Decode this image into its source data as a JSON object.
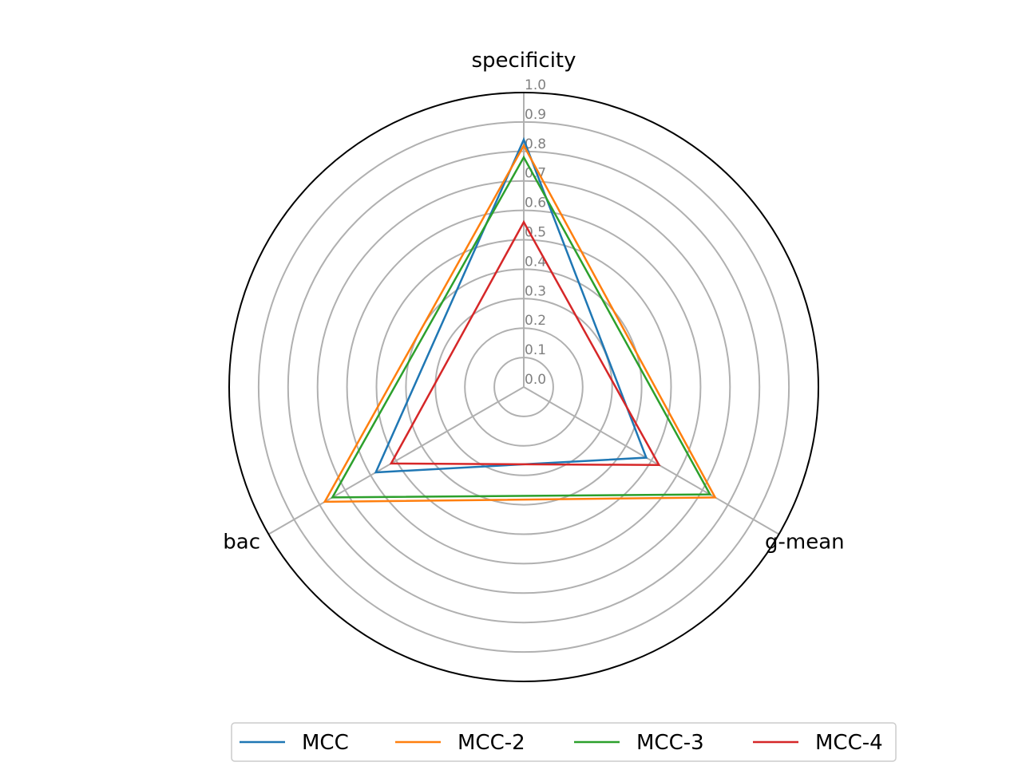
{
  "chart_data": {
    "type": "radar",
    "axes": [
      "specificity",
      "g-mean",
      "bac"
    ],
    "rlim": [
      0,
      1.0
    ],
    "r_ticks": [
      "0.0",
      "0.1",
      "0.2",
      "0.3",
      "0.4",
      "0.5",
      "0.6",
      "0.7",
      "0.8",
      "0.9",
      "1.0"
    ],
    "grid": true,
    "legend_position": "bottom",
    "series": [
      {
        "name": "MCC",
        "color": "#1f77b4",
        "values": [
          0.84,
          0.48,
          0.58
        ]
      },
      {
        "name": "MCC-2",
        "color": "#ff7f0e",
        "values": [
          0.82,
          0.75,
          0.78
        ]
      },
      {
        "name": "MCC-3",
        "color": "#2ca02c",
        "values": [
          0.78,
          0.73,
          0.75
        ]
      },
      {
        "name": "MCC-4",
        "color": "#d62728",
        "values": [
          0.56,
          0.53,
          0.52
        ]
      }
    ]
  }
}
